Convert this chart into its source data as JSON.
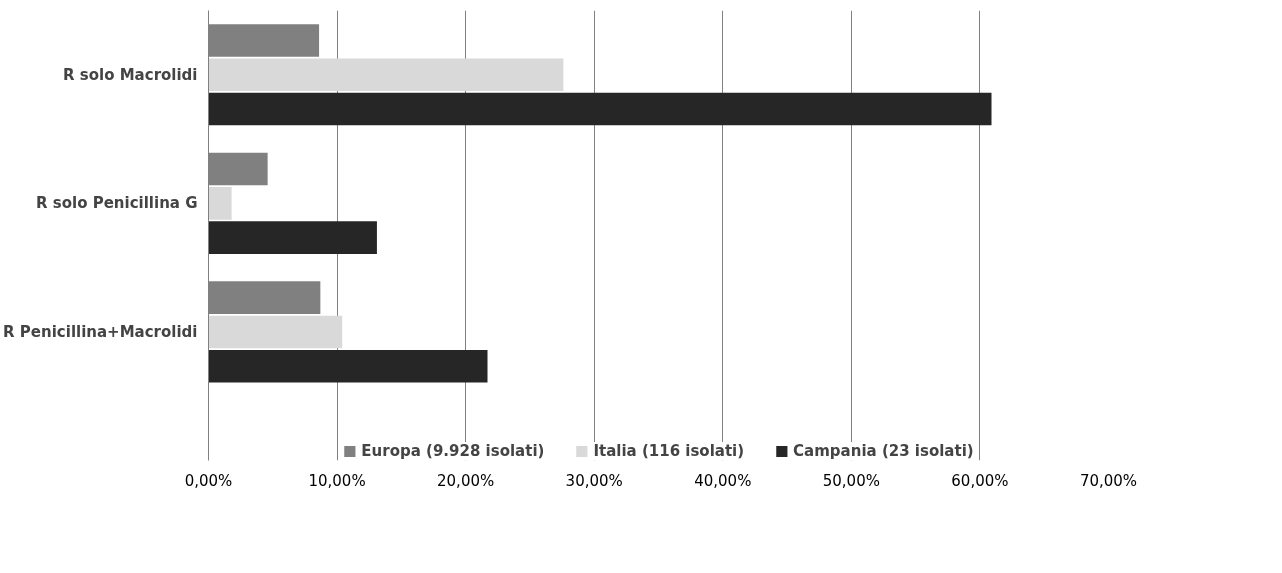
{
  "chart_data": {
    "type": "bar",
    "orientation": "horizontal",
    "categories": [
      "R solo Macrolidi",
      "R solo Penicillina G",
      "R Penicillina+Macrolidi"
    ],
    "series": [
      {
        "name": "Europa (9.928 isolati)",
        "color": "#808080",
        "values": [
          8.6,
          4.6,
          8.7
        ]
      },
      {
        "name": "Italia (116 isolati)",
        "color": "#d9d9d9",
        "values": [
          27.6,
          1.8,
          10.4
        ]
      },
      {
        "name": "Campania (23 isolati)",
        "color": "#262626",
        "values": [
          60.9,
          13.1,
          21.7
        ]
      }
    ],
    "xlim": [
      0,
      70
    ],
    "xticks": [
      {
        "value": 0,
        "label": "0,00%"
      },
      {
        "value": 10,
        "label": "10,00%"
      },
      {
        "value": 20,
        "label": "20,00%"
      },
      {
        "value": 30,
        "label": "30,00%"
      },
      {
        "value": 40,
        "label": "40,00%"
      },
      {
        "value": 50,
        "label": "50,00%"
      },
      {
        "value": 60,
        "label": "60,00%"
      },
      {
        "value": 70,
        "label": "70,00%"
      }
    ],
    "grid": "x",
    "legend": "bottom"
  }
}
